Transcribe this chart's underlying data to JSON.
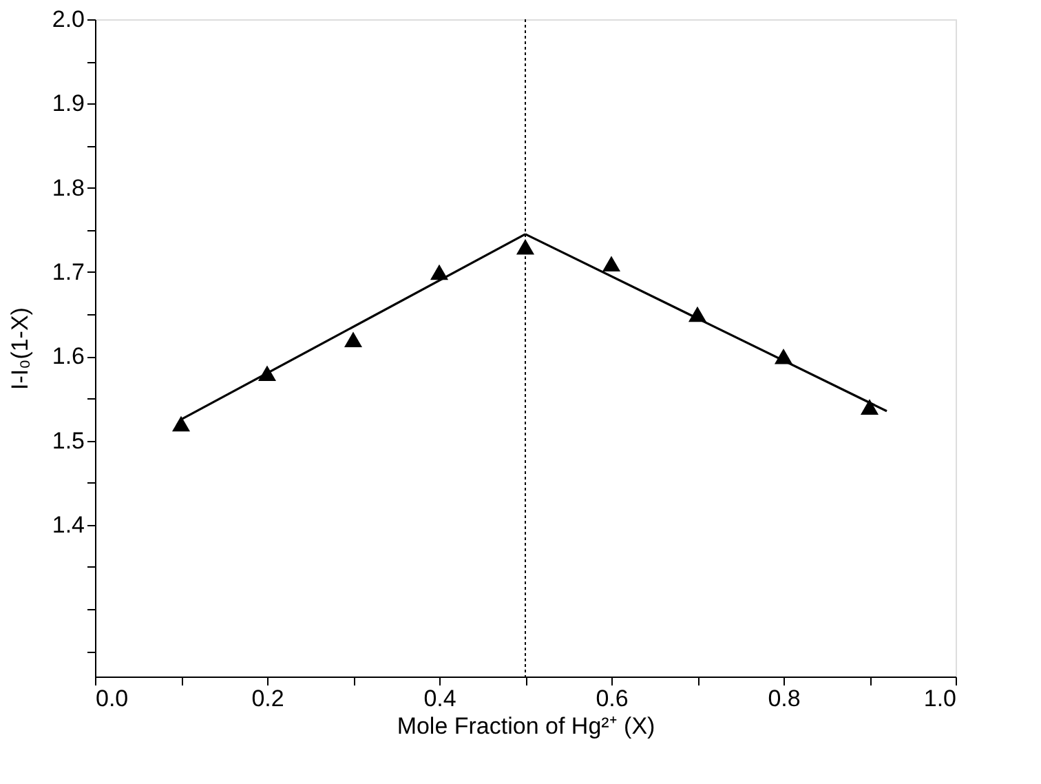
{
  "chart_data": {
    "type": "scatter",
    "xlabel": "Mole Fraction of Hg²⁺ (X)",
    "ylabel": "I-I₀(1-X)",
    "x": [
      0.1,
      0.2,
      0.3,
      0.4,
      0.5,
      0.6,
      0.7,
      0.8,
      0.9
    ],
    "series": [
      {
        "color": "#000000",
        "marker": "triangle",
        "values": [
          1.52,
          1.58,
          1.62,
          1.7,
          1.73,
          1.71,
          1.65,
          1.6,
          1.54
        ]
      },
      {
        "type": "line",
        "color": "#000000",
        "line_style": "solid",
        "x": [
          0.1,
          0.5
        ],
        "values": [
          1.525,
          1.745
        ]
      },
      {
        "type": "line",
        "color": "#000000",
        "line_style": "solid",
        "x": [
          0.5,
          0.92
        ],
        "values": [
          1.745,
          1.535
        ]
      }
    ],
    "ref_lines": [
      {
        "axis": "x",
        "value": 0.5,
        "color": "#000000",
        "line_style": "dotted"
      }
    ],
    "xlim": [
      0.0,
      1.0
    ],
    "ylim": [
      1.22,
      2.0
    ],
    "xticks": [
      {
        "value": 0.0,
        "label": "0.0"
      },
      {
        "value": 0.1,
        "label": null
      },
      {
        "value": 0.2,
        "label": "0.2"
      },
      {
        "value": 0.3,
        "label": null
      },
      {
        "value": 0.4,
        "label": "0.4"
      },
      {
        "value": 0.5,
        "label": null
      },
      {
        "value": 0.6,
        "label": "0.6"
      },
      {
        "value": 0.7,
        "label": null
      },
      {
        "value": 0.8,
        "label": "0.8"
      },
      {
        "value": 0.9,
        "label": null
      },
      {
        "value": 1.0,
        "label": "1.0"
      }
    ],
    "yticks": [
      {
        "value": 1.25,
        "label": null
      },
      {
        "value": 1.3,
        "label": null
      },
      {
        "value": 1.35,
        "label": null
      },
      {
        "value": 1.4,
        "label": "1.4"
      },
      {
        "value": 1.45,
        "label": null
      },
      {
        "value": 1.5,
        "label": "1.5"
      },
      {
        "value": 1.55,
        "label": null
      },
      {
        "value": 1.6,
        "label": "1.6"
      },
      {
        "value": 1.65,
        "label": null
      },
      {
        "value": 1.7,
        "label": "1.7"
      },
      {
        "value": 1.75,
        "label": null
      },
      {
        "value": 1.8,
        "label": "1.8"
      },
      {
        "value": 1.85,
        "label": null
      },
      {
        "value": 1.9,
        "label": "1.9"
      },
      {
        "value": 1.95,
        "label": null
      },
      {
        "value": 2.0,
        "label": "2.0"
      }
    ],
    "grid": false
  }
}
